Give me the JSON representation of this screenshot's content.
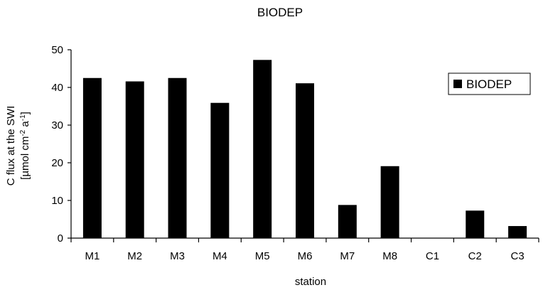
{
  "chart_data": {
    "type": "bar",
    "title": "BIODEP",
    "xlabel": "station",
    "ylabel_line1": "C flux at the SWI",
    "ylabel_line2": {
      "prefix": "[µmol cm",
      "sup1": "-2",
      "mid": " a",
      "sup2": "-1",
      "suffix": "]"
    },
    "categories": [
      "M1",
      "M2",
      "M3",
      "M4",
      "M5",
      "M6",
      "M7",
      "M8",
      "C1",
      "C2",
      "C3"
    ],
    "series": [
      {
        "name": "BIODEP",
        "color": "#000000",
        "values": [
          42.5,
          41.6,
          42.5,
          35.9,
          47.3,
          41.1,
          8.8,
          19.1,
          0,
          7.3,
          3.2
        ]
      }
    ],
    "ylim": [
      0,
      50
    ],
    "yticks": [
      0,
      10,
      20,
      30,
      40,
      50
    ],
    "legend_position": "top-right",
    "grid": false
  }
}
